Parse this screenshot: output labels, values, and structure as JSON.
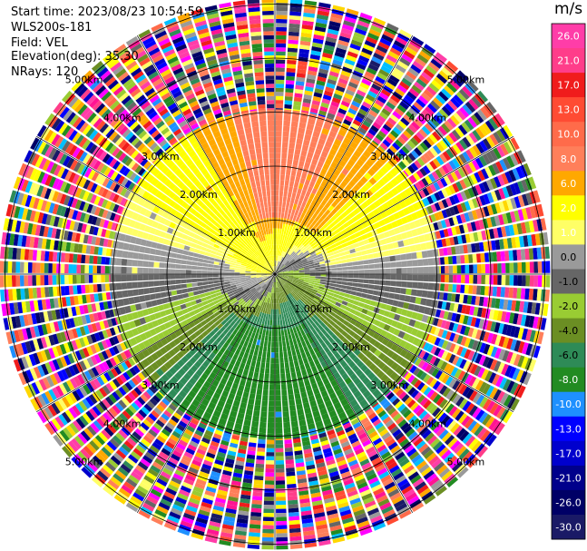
{
  "header": {
    "start_time": "Start time: 2023/08/23 10:54:59",
    "instrument": "WLS200s-181",
    "field": "Field: VEL",
    "elevation": "Elevation(deg): 35.30",
    "nrays": "NRays: 120"
  },
  "colorbar": {
    "unit": "m/s",
    "levels": [
      {
        "label": "26.0",
        "color": "#ff3da8"
      },
      {
        "label": "21.0",
        "color": "#ff3d8a"
      },
      {
        "label": "17.0",
        "color": "#f01c1c"
      },
      {
        "label": "13.0",
        "color": "#ff4b33"
      },
      {
        "label": "10.0",
        "color": "#ff6b4a"
      },
      {
        "label": "8.0",
        "color": "#ff7f5a"
      },
      {
        "label": "6.0",
        "color": "#ffa800"
      },
      {
        "label": "2.0",
        "color": "#ffff00"
      },
      {
        "label": "1.0",
        "color": "#ffff66"
      },
      {
        "label": "0.0",
        "color": "#9a9a9a"
      },
      {
        "label": "-1.0",
        "color": "#666666"
      },
      {
        "label": "-2.0",
        "color": "#99cc33"
      },
      {
        "label": "-4.0",
        "color": "#6b8e23"
      },
      {
        "label": "-6.0",
        "color": "#2e8b57"
      },
      {
        "label": "-8.0",
        "color": "#228b22"
      },
      {
        "label": "-10.0",
        "color": "#1e90ff"
      },
      {
        "label": "-13.0",
        "color": "#0000ff"
      },
      {
        "label": "-17.0",
        "color": "#0000cd"
      },
      {
        "label": "-21.0",
        "color": "#00008b"
      },
      {
        "label": "-26.0",
        "color": "#000066"
      },
      {
        "label": "-30.0",
        "color": "#1a1a66"
      }
    ]
  },
  "chart_data": {
    "type": "heatmap",
    "projection": "polar PPI",
    "field": "VEL",
    "units": "m/s",
    "nrays": 120,
    "range_rings_km": [
      1.0,
      2.0,
      3.0,
      4.0,
      5.0
    ],
    "ring_labels": [
      "1.00km",
      "2.00km",
      "3.00km",
      "4.00km",
      "5.00km"
    ],
    "valid_data_max_range_km": 3.0,
    "beyond_range": "noisy random velocities",
    "velocity_pattern_by_azimuth": [
      {
        "azimuth_deg": 0,
        "velocity": 10.0
      },
      {
        "azimuth_deg": 45,
        "velocity": 6.0
      },
      {
        "azimuth_deg": 70,
        "velocity": 2.0
      },
      {
        "azimuth_deg": 90,
        "velocity": 0.0
      },
      {
        "azimuth_deg": 120,
        "velocity": -2.0
      },
      {
        "azimuth_deg": 150,
        "velocity": -6.0
      },
      {
        "azimuth_deg": 180,
        "velocity": -8.0
      },
      {
        "azimuth_deg": 215,
        "velocity": -6.0
      },
      {
        "azimuth_deg": 240,
        "velocity": -2.0
      },
      {
        "azimuth_deg": 270,
        "velocity": 0.0
      },
      {
        "azimuth_deg": 300,
        "velocity": 2.0
      },
      {
        "azimuth_deg": 330,
        "velocity": 6.0
      }
    ]
  }
}
